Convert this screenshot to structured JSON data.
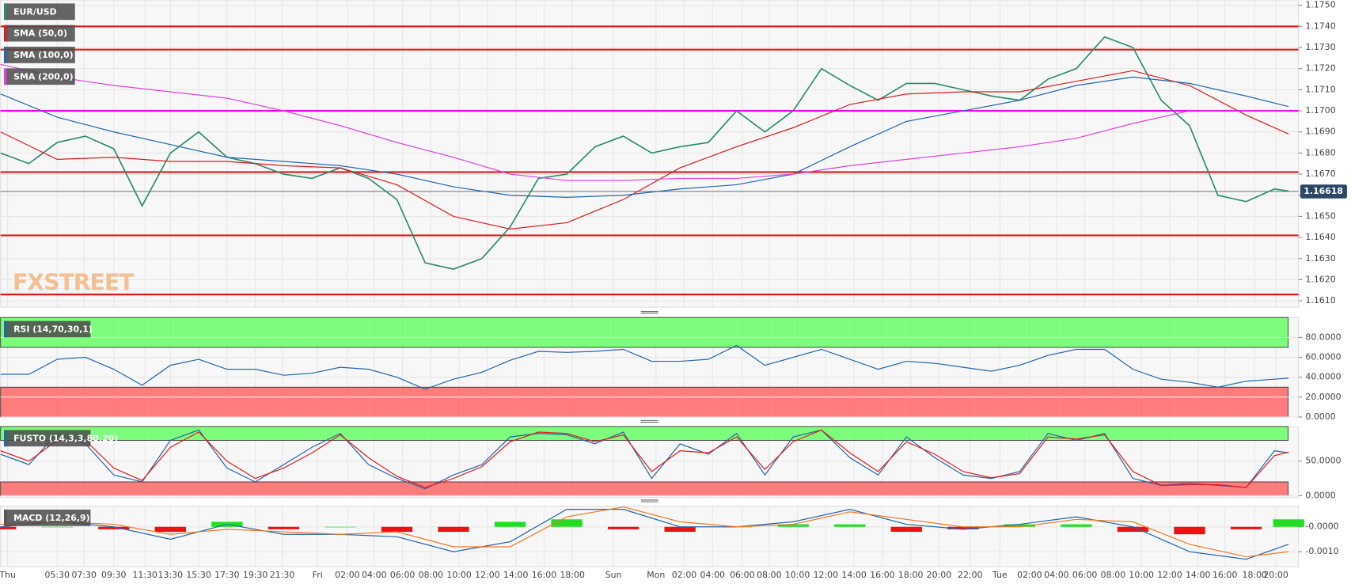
{
  "chart_data": [
    {
      "type": "line",
      "title": "EUR/USD",
      "watermark": "FXSTREET",
      "xlim": [
        0,
        91.7
      ],
      "ylim": [
        1.1607,
        1.17525
      ],
      "yticks": [
        {
          "value": 1.175,
          "label": "1.1750"
        },
        {
          "value": 1.174,
          "label": "1.1740"
        },
        {
          "value": 1.173,
          "label": "1.1730"
        },
        {
          "value": 1.172,
          "label": "1.1720"
        },
        {
          "value": 1.171,
          "label": "1.1710"
        },
        {
          "value": 1.17,
          "label": "1.1700"
        },
        {
          "value": 1.169,
          "label": "1.1690"
        },
        {
          "value": 1.168,
          "label": "1.1680"
        },
        {
          "value": 1.167,
          "label": "1.1670"
        },
        {
          "value": 1.166,
          "label": "1.1660"
        },
        {
          "value": 1.165,
          "label": "1.1650"
        },
        {
          "value": 1.164,
          "label": "1.1640"
        },
        {
          "value": 1.163,
          "label": "1.1630"
        },
        {
          "value": 1.162,
          "label": "1.1620"
        },
        {
          "value": 1.161,
          "label": "1.1610"
        }
      ],
      "grid": true,
      "levels": [
        {
          "value": 1.174,
          "color": "#e31a1c"
        },
        {
          "value": 1.1729,
          "color": "#e31a1c"
        },
        {
          "value": 1.17,
          "color": "#ff00ff"
        },
        {
          "value": 1.1671,
          "color": "#e31a1c"
        },
        {
          "value": 1.1641,
          "color": "#e31a1c"
        },
        {
          "value": 1.1613,
          "color": "#e31a1c"
        }
      ],
      "last_price": 1.16618,
      "series": [
        {
          "color": "#2a8a6a",
          "x": [
            0,
            2,
            4,
            6,
            8,
            10,
            12,
            14,
            16,
            18,
            20,
            22,
            24,
            26,
            28,
            30,
            32,
            34,
            36,
            38,
            40,
            42,
            44,
            46,
            48,
            50,
            52,
            54,
            56,
            58,
            60,
            62,
            64,
            66,
            68,
            70,
            72,
            74,
            76,
            78,
            80,
            82,
            84,
            86,
            88,
            90,
            91
          ],
          "values": [
            1.168,
            1.1675,
            1.1685,
            1.1688,
            1.1682,
            1.1655,
            1.168,
            1.169,
            1.1678,
            1.1675,
            1.167,
            1.1668,
            1.1673,
            1.1668,
            1.1658,
            1.1628,
            1.1625,
            1.163,
            1.1645,
            1.1668,
            1.167,
            1.1683,
            1.1688,
            1.168,
            1.1683,
            1.1685,
            1.17,
            1.169,
            1.17,
            1.172,
            1.1712,
            1.1705,
            1.1713,
            1.1713,
            1.171,
            1.1707,
            1.1705,
            1.1715,
            1.172,
            1.1735,
            1.173,
            1.1705,
            1.1693,
            1.166,
            1.1657,
            1.1663,
            1.1662
          ]
        },
        {
          "name": "SMA (50,0)",
          "color": "#e31a1c",
          "x": [
            0,
            4,
            8,
            12,
            16,
            20,
            24,
            28,
            32,
            36,
            40,
            44,
            48,
            52,
            56,
            60,
            64,
            68,
            72,
            76,
            80,
            84,
            88,
            91
          ],
          "values": [
            1.169,
            1.1677,
            1.1678,
            1.1676,
            1.1676,
            1.1674,
            1.1673,
            1.1665,
            1.165,
            1.1644,
            1.1647,
            1.1658,
            1.1673,
            1.1683,
            1.1692,
            1.1703,
            1.1708,
            1.1709,
            1.1709,
            1.1714,
            1.1719,
            1.1712,
            1.1698,
            1.1689
          ]
        },
        {
          "name": "SMA (100,0)",
          "color": "#2166ac",
          "x": [
            0,
            4,
            8,
            12,
            16,
            20,
            24,
            28,
            32,
            36,
            40,
            44,
            48,
            52,
            56,
            60,
            64,
            68,
            72,
            76,
            80,
            84,
            88,
            91
          ],
          "values": [
            1.1708,
            1.1697,
            1.169,
            1.1684,
            1.1678,
            1.1676,
            1.1674,
            1.167,
            1.1664,
            1.166,
            1.1659,
            1.166,
            1.1663,
            1.1665,
            1.167,
            1.1683,
            1.1695,
            1.17,
            1.1705,
            1.1712,
            1.1716,
            1.1713,
            1.1707,
            1.1702
          ]
        },
        {
          "name": "SMA (200,0)",
          "color": "#e040e0",
          "x": [
            0,
            4,
            8,
            12,
            16,
            20,
            24,
            28,
            32,
            36,
            40,
            44,
            48,
            52,
            56,
            60,
            64,
            68,
            72,
            76,
            80,
            84,
            88,
            91
          ],
          "values": [
            1.1722,
            1.1716,
            1.1712,
            1.1709,
            1.1706,
            1.17,
            1.1693,
            1.1685,
            1.1678,
            1.167,
            1.1667,
            1.1667,
            1.1668,
            1.1668,
            1.167,
            1.1674,
            1.1677,
            1.168,
            1.1683,
            1.1687,
            1.1694,
            1.17,
            1.17,
            1.17
          ]
        }
      ]
    },
    {
      "type": "line",
      "title": "RSI (14,70,30,1)",
      "xlim": [
        0,
        91.7
      ],
      "ylim": [
        0,
        100
      ],
      "yticks": [
        {
          "value": 80,
          "label": "80.0000"
        },
        {
          "value": 60,
          "label": "60.0000"
        },
        {
          "value": 40,
          "label": "40.0000"
        },
        {
          "value": 20,
          "label": "20.0000"
        },
        {
          "value": 0,
          "label": "0.0000"
        }
      ],
      "grid": true,
      "zones": [
        {
          "from": 70,
          "to": 100,
          "color": "#66ff66"
        },
        {
          "from": 0,
          "to": 30,
          "color": "#ff6666"
        }
      ],
      "series": [
        {
          "color": "#2166ac",
          "x": [
            0,
            2,
            4,
            6,
            8,
            10,
            12,
            14,
            16,
            18,
            20,
            22,
            24,
            26,
            28,
            30,
            32,
            34,
            36,
            38,
            40,
            42,
            44,
            46,
            48,
            50,
            52,
            54,
            56,
            58,
            60,
            62,
            64,
            66,
            68,
            70,
            72,
            74,
            76,
            78,
            80,
            82,
            84,
            86,
            88,
            90,
            91
          ],
          "values": [
            43,
            43,
            58,
            60,
            48,
            32,
            52,
            58,
            48,
            48,
            42,
            44,
            50,
            48,
            40,
            28,
            38,
            45,
            57,
            66,
            65,
            66,
            68,
            56,
            56,
            58,
            72,
            52,
            60,
            68,
            58,
            48,
            56,
            54,
            50,
            46,
            52,
            62,
            68,
            68,
            48,
            38,
            35,
            30,
            36,
            38,
            39
          ]
        }
      ]
    },
    {
      "type": "line",
      "title": "FUSTO (14,3,3,80,20)",
      "xlim": [
        0,
        91.7
      ],
      "ylim": [
        -2.5,
        100
      ],
      "yticks": [
        {
          "value": 50,
          "label": "50.0000"
        },
        {
          "value": 0,
          "label": "0.0000"
        }
      ],
      "grid": true,
      "zones": [
        {
          "from": 80,
          "to": 100,
          "color": "#66ff66"
        },
        {
          "from": 0,
          "to": 20,
          "color": "#ff6666"
        }
      ],
      "series": [
        {
          "color": "#2166ac",
          "x": [
            0,
            2,
            4,
            6,
            8,
            10,
            12,
            14,
            16,
            18,
            20,
            22,
            24,
            26,
            28,
            30,
            32,
            34,
            36,
            38,
            40,
            42,
            44,
            46,
            48,
            50,
            52,
            54,
            56,
            58,
            60,
            62,
            64,
            66,
            68,
            70,
            72,
            74,
            76,
            78,
            80,
            82,
            84,
            86,
            88,
            90,
            91
          ],
          "values": [
            60,
            45,
            90,
            75,
            30,
            20,
            80,
            95,
            40,
            20,
            45,
            70,
            90,
            45,
            25,
            10,
            30,
            45,
            85,
            90,
            88,
            75,
            92,
            25,
            75,
            60,
            90,
            30,
            85,
            95,
            55,
            30,
            85,
            55,
            30,
            25,
            35,
            90,
            80,
            90,
            25,
            15,
            18,
            15,
            12,
            65,
            62
          ]
        },
        {
          "color": "#e31a1c",
          "x": [
            0,
            2,
            4,
            6,
            8,
            10,
            12,
            14,
            16,
            18,
            20,
            22,
            24,
            26,
            28,
            30,
            32,
            34,
            36,
            38,
            40,
            42,
            44,
            46,
            48,
            50,
            52,
            54,
            56,
            58,
            60,
            62,
            64,
            66,
            68,
            70,
            72,
            74,
            76,
            78,
            80,
            82,
            84,
            86,
            88,
            90,
            91
          ],
          "values": [
            65,
            50,
            80,
            80,
            40,
            22,
            70,
            92,
            50,
            25,
            40,
            62,
            88,
            55,
            28,
            12,
            25,
            42,
            78,
            92,
            90,
            78,
            88,
            35,
            65,
            62,
            85,
            38,
            78,
            95,
            62,
            35,
            78,
            60,
            35,
            26,
            32,
            85,
            82,
            88,
            35,
            15,
            16,
            16,
            12,
            58,
            63
          ]
        }
      ]
    },
    {
      "type": "line",
      "title": "MACD (12,26,9)",
      "xlim": [
        0,
        91.7
      ],
      "ylim": [
        -0.0016,
        0.00083
      ],
      "yticks": [
        {
          "value": 0,
          "label": "-0.0000"
        },
        {
          "value": -0.001,
          "label": "-0.0010"
        }
      ],
      "grid": true,
      "xticks": [
        {
          "value": 0.5,
          "label": "Thu"
        },
        {
          "value": 4,
          "label": "05:30"
        },
        {
          "value": 5.9,
          "label": "07:30"
        },
        {
          "value": 8,
          "label": "09:30"
        },
        {
          "value": 10.2,
          "label": "11:30"
        },
        {
          "value": 12,
          "label": "13:30"
        },
        {
          "value": 14,
          "label": "15:30"
        },
        {
          "value": 16,
          "label": "17:30"
        },
        {
          "value": 18,
          "label": "19:30"
        },
        {
          "value": 19.9,
          "label": "21:30"
        },
        {
          "value": 22.4,
          "label": "Fri"
        },
        {
          "value": 24.5,
          "label": "02:00"
        },
        {
          "value": 26.4,
          "label": "04:00"
        },
        {
          "value": 28.4,
          "label": "06:00"
        },
        {
          "value": 30.4,
          "label": "08:00"
        },
        {
          "value": 32.4,
          "label": "10:00"
        },
        {
          "value": 34.4,
          "label": "12:00"
        },
        {
          "value": 36.4,
          "label": "14:00"
        },
        {
          "value": 38.4,
          "label": "16:00"
        },
        {
          "value": 40.4,
          "label": "18:00"
        },
        {
          "value": 43.3,
          "label": "Sun"
        },
        {
          "value": 46.3,
          "label": "Mon"
        },
        {
          "value": 48.3,
          "label": "02:00"
        },
        {
          "value": 50.3,
          "label": "04:00"
        },
        {
          "value": 52.4,
          "label": "06:00"
        },
        {
          "value": 54.3,
          "label": "08:00"
        },
        {
          "value": 56.3,
          "label": "10:00"
        },
        {
          "value": 58.3,
          "label": "12:00"
        },
        {
          "value": 60.3,
          "label": "14:00"
        },
        {
          "value": 62.3,
          "label": "16:00"
        },
        {
          "value": 64.3,
          "label": "18:00"
        },
        {
          "value": 66.3,
          "label": "20:00"
        },
        {
          "value": 68.5,
          "label": "22:00"
        },
        {
          "value": 70.6,
          "label": "Tue"
        },
        {
          "value": 72.7,
          "label": "02:00"
        },
        {
          "value": 74.6,
          "label": "04:00"
        },
        {
          "value": 76.6,
          "label": "06:00"
        },
        {
          "value": 78.6,
          "label": "08:00"
        },
        {
          "value": 80.6,
          "label": "10:00"
        },
        {
          "value": 82.6,
          "label": "12:00"
        },
        {
          "value": 84.6,
          "label": "14:00"
        },
        {
          "value": 86.5,
          "label": "16:00"
        },
        {
          "value": 88.6,
          "label": "18:00"
        },
        {
          "value": 90.1,
          "label": "20:00"
        }
      ],
      "series": [
        {
          "type": "bar",
          "positive_color": "#22dd22",
          "negative_color": "#ee1111",
          "x": [
            0,
            4,
            8,
            12,
            16,
            20,
            24,
            28,
            32,
            36,
            40,
            44,
            48,
            52,
            56,
            60,
            64,
            68,
            72,
            76,
            80,
            84,
            88,
            91
          ],
          "values": [
            -0.0001,
            0,
            -0.0001,
            -0.0002,
            0.0002,
            -0.0001,
            0,
            -0.0002,
            -0.0002,
            0.0002,
            0.0003,
            -0.0001,
            -0.0002,
            0,
            0.0001,
            0.0001,
            -0.0002,
            -0.0001,
            0.0001,
            0.0001,
            -0.0002,
            -0.0003,
            -0.0001,
            0.0003
          ]
        },
        {
          "color": "#2166ac",
          "x": [
            0,
            4,
            8,
            12,
            16,
            20,
            24,
            28,
            32,
            36,
            40,
            44,
            48,
            52,
            56,
            60,
            64,
            68,
            72,
            76,
            80,
            84,
            88,
            91
          ],
          "values": [
            0,
            0.0002,
            0,
            -0.0005,
            0.0001,
            -0.0003,
            -0.0003,
            -0.0004,
            -0.001,
            -0.0006,
            0.0007,
            0.0007,
            0,
            0,
            0.0002,
            0.0007,
            0.0001,
            -0.0001,
            0.0001,
            0.0004,
            0,
            -0.001,
            -0.0013,
            -0.0007
          ]
        },
        {
          "color": "#f07820",
          "x": [
            0,
            4,
            8,
            12,
            16,
            20,
            24,
            28,
            32,
            36,
            40,
            44,
            48,
            52,
            56,
            60,
            64,
            68,
            72,
            76,
            80,
            84,
            88,
            91
          ],
          "values": [
            0.0001,
            0.0002,
            0.0001,
            -0.0003,
            -0.0001,
            -0.0002,
            -0.0003,
            -0.0002,
            -0.0008,
            -0.0008,
            0.0004,
            0.0008,
            0.0002,
            0,
            0.0001,
            0.0006,
            0.0003,
            0,
            0,
            0.0003,
            0.0002,
            -0.0007,
            -0.0012,
            -0.001
          ]
        }
      ]
    }
  ]
}
